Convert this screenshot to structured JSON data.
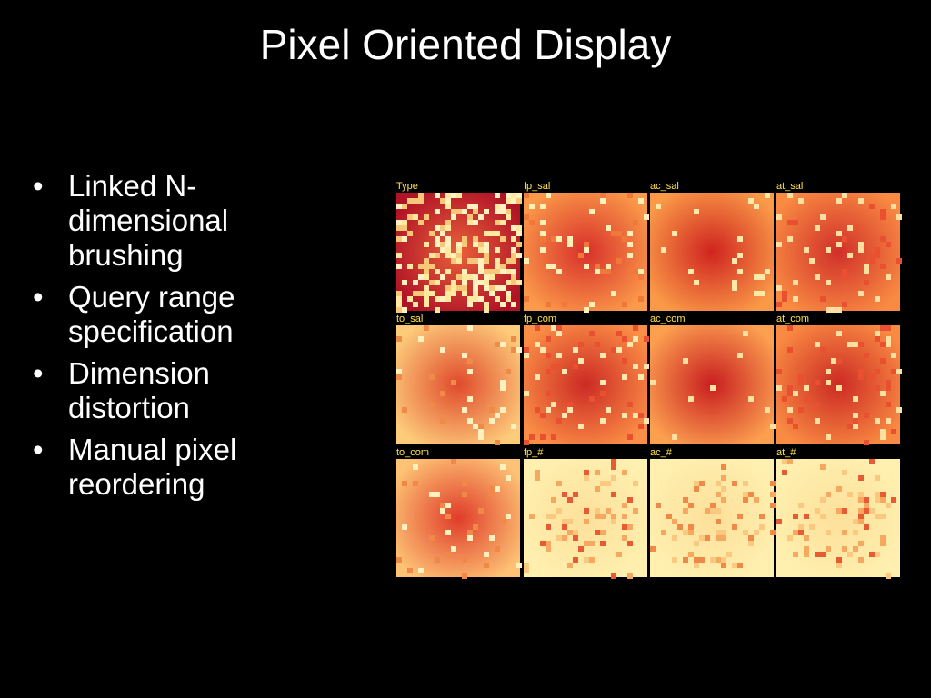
{
  "title": "Pixel Oriented Display",
  "bullets": [
    "Linked N-dimensional brushing",
    "Query range specification",
    "Dimension distortion",
    "Manual pixel reordering"
  ],
  "panels": [
    "Type",
    "fp_sal",
    "ac_sal",
    "at_sal",
    "to_sal",
    "fp_com",
    "ac_com",
    "at_com",
    "to_com",
    "fp_#",
    "ac_#",
    "at_#"
  ]
}
